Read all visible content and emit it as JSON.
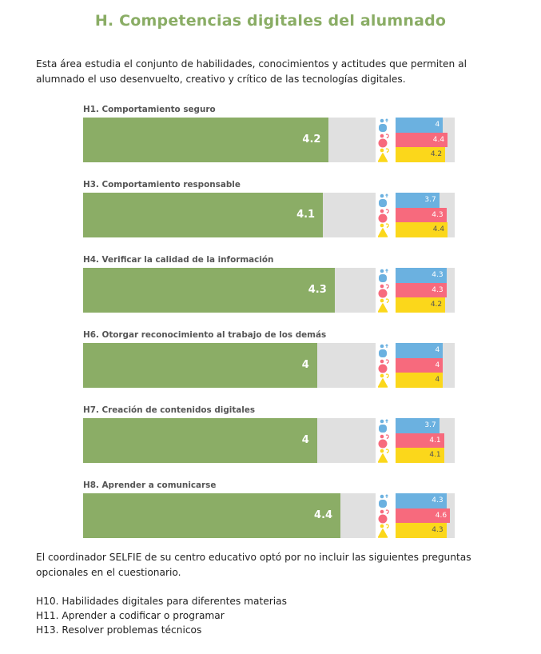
{
  "title": "H. Competencias digitales del alumnado",
  "intro": "Esta área estudia el conjunto de habilidades, conocimientos y actitudes que permiten al alumnado el uso desenvuelto, creativo y crítico de las tecnologías digitales.",
  "colors": {
    "overall": "#8bad66",
    "track": "#e0e0e0",
    "school_leaders": "#6bb1e0",
    "teachers": "#f76a7d",
    "students": "#fbd71b",
    "title": "#8aad65"
  },
  "groups": [
    {
      "key": "school_leaders",
      "icon": "school-leaders-icon"
    },
    {
      "key": "teachers",
      "icon": "teachers-icon"
    },
    {
      "key": "students",
      "icon": "students-icon"
    }
  ],
  "chart_data": {
    "type": "bar",
    "orientation": "horizontal",
    "scale": [
      0,
      5
    ],
    "categories": [
      "H1. Comportamiento seguro",
      "H3. Comportamiento responsable",
      "H4. Verificar la calidad de la información",
      "H6. Otorgar reconocimiento al trabajo de los demás",
      "H7. Creación de contenidos digitales",
      "H8. Aprender a comunicarse"
    ],
    "series": [
      {
        "name": "overall",
        "values": [
          4.2,
          4.1,
          4.3,
          4,
          4,
          4.4
        ]
      },
      {
        "name": "school_leaders",
        "values": [
          4,
          3.7,
          4.3,
          4,
          3.7,
          4.3
        ]
      },
      {
        "name": "teachers",
        "values": [
          4.4,
          4.3,
          4.3,
          4,
          4.1,
          4.6
        ]
      },
      {
        "name": "students",
        "values": [
          4.2,
          4.4,
          4.2,
          4,
          4.1,
          4.3
        ]
      }
    ]
  },
  "rows": [
    {
      "label": "H1. Comportamiento seguro",
      "overall": "4.2",
      "school_leaders": "4",
      "teachers": "4.4",
      "students": "4.2"
    },
    {
      "label": "H3. Comportamiento responsable",
      "overall": "4.1",
      "school_leaders": "3.7",
      "teachers": "4.3",
      "students": "4.4"
    },
    {
      "label": "H4. Verificar la calidad de la información",
      "overall": "4.3",
      "school_leaders": "4.3",
      "teachers": "4.3",
      "students": "4.2"
    },
    {
      "label": "H6. Otorgar reconocimiento al trabajo de los demás",
      "overall": "4",
      "school_leaders": "4",
      "teachers": "4",
      "students": "4"
    },
    {
      "label": "H7. Creación de contenidos digitales",
      "overall": "4",
      "school_leaders": "3.7",
      "teachers": "4.1",
      "students": "4.1"
    },
    {
      "label": "H8. Aprender a comunicarse",
      "overall": "4.4",
      "school_leaders": "4.3",
      "teachers": "4.6",
      "students": "4.3"
    }
  ],
  "note": "El coordinador SELFIE de su centro educativo optó por no incluir las siguientes preguntas opcionales en el cuestionario.",
  "omitted_questions": [
    "H10. Habilidades digitales para diferentes materias",
    "H11. Aprender a codificar o programar",
    "H13. Resolver problemas técnicos"
  ]
}
